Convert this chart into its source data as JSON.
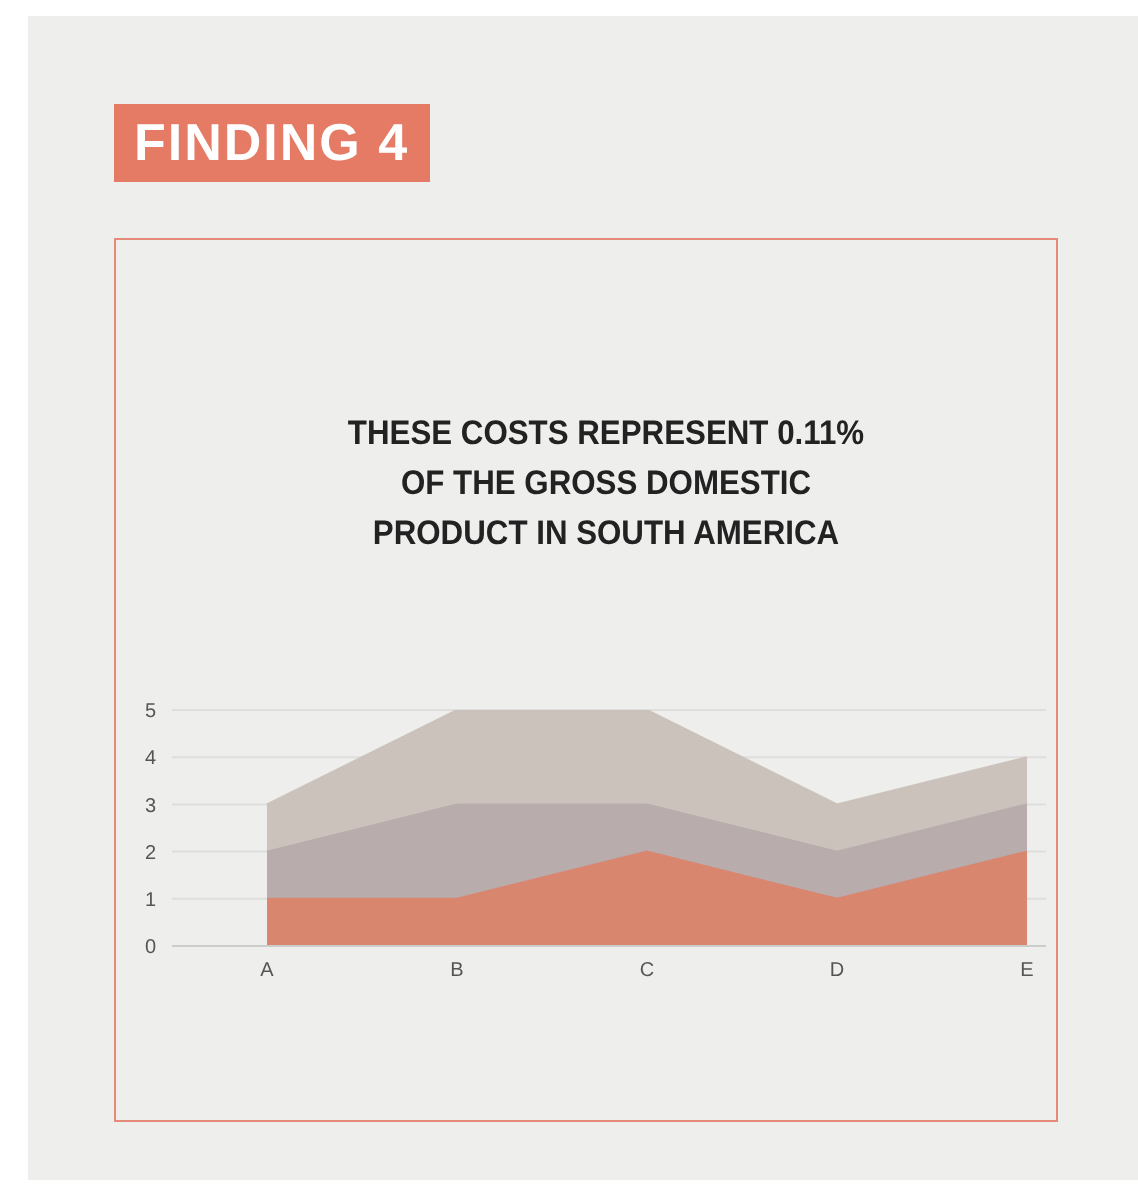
{
  "chart_data": {
    "type": "area",
    "title": "FINDING 4",
    "subtitle": "THESE COSTS REPRESENT 0.11% OF THE GROSS DOMESTIC PRODUCT IN SOUTH AMERICA",
    "categories": [
      "A",
      "B",
      "C",
      "D",
      "E"
    ],
    "series": [
      {
        "color": "#cbc2bc",
        "values": [
          3,
          5,
          5,
          3,
          4
        ]
      },
      {
        "color": "#b8acad",
        "values": [
          2,
          3,
          3,
          2,
          3
        ]
      },
      {
        "color": "#d9866f",
        "values": [
          1,
          1,
          2,
          1,
          2
        ]
      }
    ],
    "ylim": [
      0,
      5
    ],
    "yticks": [
      0,
      1,
      2,
      3,
      4,
      5
    ],
    "grid": "y"
  }
}
